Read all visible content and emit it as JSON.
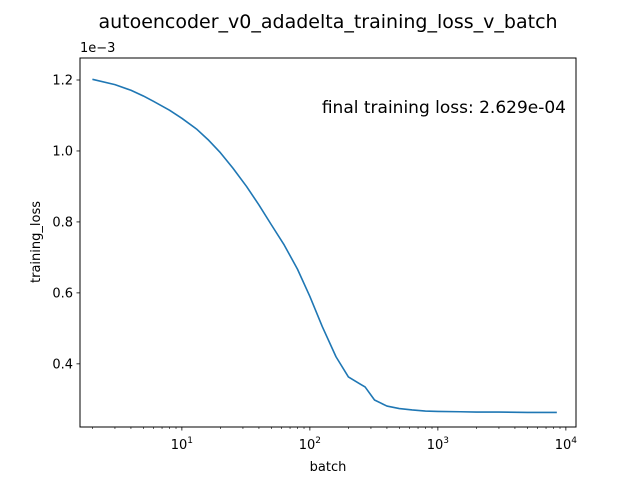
{
  "chart_data": {
    "type": "line",
    "title": "autoencoder_v0_adadelta_training_loss_v_batch",
    "xlabel": "batch",
    "ylabel": "training_loss",
    "x_scale": "log",
    "xlim": [
      1.6,
      12000
    ],
    "ylim": [
      0.000222,
      0.001262
    ],
    "y_offset_label": "1e−3",
    "x_ticks": [
      {
        "value": 10,
        "base": "10",
        "exp": "1"
      },
      {
        "value": 100,
        "base": "10",
        "exp": "2"
      },
      {
        "value": 1000,
        "base": "10",
        "exp": "3"
      },
      {
        "value": 10000,
        "base": "10",
        "exp": "4"
      }
    ],
    "y_ticks": [
      {
        "value": 0.0004,
        "label": "0.4"
      },
      {
        "value": 0.0006,
        "label": "0.6"
      },
      {
        "value": 0.0008,
        "label": "0.8"
      },
      {
        "value": 0.001,
        "label": "1.0"
      },
      {
        "value": 0.0012,
        "label": "1.2"
      }
    ],
    "grid": false,
    "annotation": "final training loss: 2.629e-04",
    "series": [
      {
        "color": "#1f77b4",
        "x": [
          2,
          3,
          4,
          5,
          6,
          8,
          10,
          13,
          16,
          20,
          25,
          32,
          40,
          50,
          63,
          80,
          100,
          125,
          160,
          200,
          250,
          270,
          320,
          400,
          500,
          630,
          800,
          1000,
          1500,
          2000,
          3000,
          5000,
          8500
        ],
        "y": [
          0.001202,
          0.001187,
          0.001171,
          0.001155,
          0.00114,
          0.001115,
          0.001092,
          0.001062,
          0.001032,
          0.000995,
          0.000952,
          0.0009,
          0.000848,
          0.000792,
          0.000735,
          0.000667,
          0.00059,
          0.000505,
          0.00042,
          0.000363,
          0.000342,
          0.000335,
          0.000298,
          0.000281,
          0.000274,
          0.00027,
          0.000267,
          0.000266,
          0.000265,
          0.000264,
          0.000264,
          0.000263,
          0.000263
        ]
      }
    ]
  }
}
